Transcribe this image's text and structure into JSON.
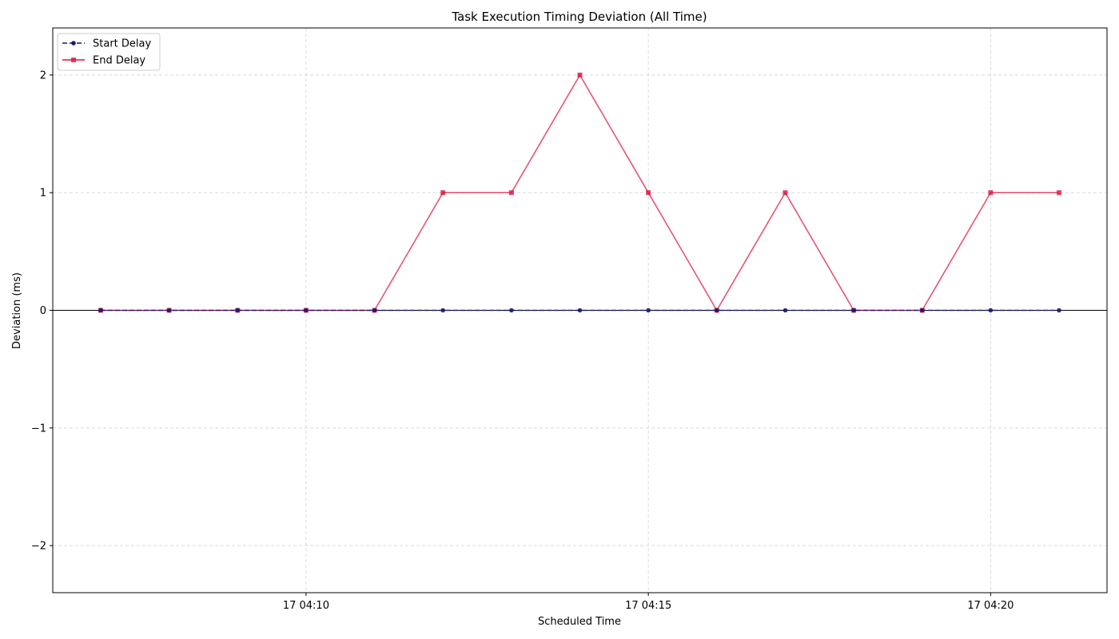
{
  "chart_data": {
    "type": "line",
    "title": "Task Execution Timing Deviation (All Time)",
    "xlabel": "Scheduled Time",
    "ylabel": "Deviation (ms)",
    "x": [
      "17 04:07",
      "17 04:08",
      "17 04:09",
      "17 04:10",
      "17 04:11",
      "17 04:12",
      "17 04:13",
      "17 04:14",
      "17 04:15",
      "17 04:16",
      "17 04:17",
      "17 04:18",
      "17 04:19",
      "17 04:20",
      "17 04:21"
    ],
    "x_ticks": [
      "17 04:10",
      "17 04:15",
      "17 04:20"
    ],
    "xlim": [
      "17 04:06:18",
      "17 04:21:42"
    ],
    "ylim": [
      -2.4,
      2.4
    ],
    "y_ticks": [
      -2,
      -1,
      0,
      1,
      2
    ],
    "y_tick_labels": [
      "−2",
      "−1",
      "0",
      "1",
      "2"
    ],
    "grid": true,
    "legend_position": "top-left",
    "reference_line_y": 0,
    "series": [
      {
        "name": "Start Delay",
        "values": [
          0,
          0,
          0,
          0,
          0,
          0,
          0,
          0,
          0,
          0,
          0,
          0,
          0,
          0,
          0
        ],
        "color": "#191970",
        "line_style": "dashed",
        "marker": "circle"
      },
      {
        "name": "End Delay",
        "values": [
          0,
          0,
          0,
          0,
          0,
          1,
          1,
          2,
          1,
          0,
          1,
          0,
          0,
          1,
          1
        ],
        "color": "#dc143c",
        "line_style": "solid",
        "marker": "square"
      }
    ]
  }
}
